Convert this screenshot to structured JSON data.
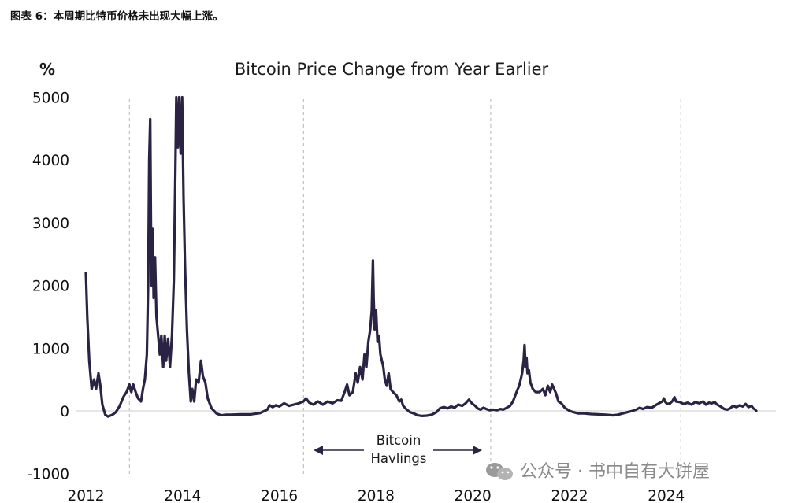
{
  "caption": "图表 6：本周期比特币价格未出现大幅上涨。",
  "watermark": {
    "text": "公众号 · 书中自有大饼屋",
    "icon": "wechat-icon"
  },
  "colors": {
    "line": "#2b2343",
    "zero_line": "#d8d8d8",
    "halving_line": "#b5b5b5",
    "text": "#1a1a1a",
    "watermark": "#8a8a8a"
  },
  "chart_data": {
    "type": "line",
    "title": "Bitcoin Price Change from Year Earlier",
    "ylabel": "%",
    "xlabel": "",
    "xlim": [
      2012,
      2025.9
    ],
    "ylim": [
      -1000,
      5000
    ],
    "x_ticks": [
      "2012",
      "2014",
      "2016",
      "2018",
      "2020",
      "2022",
      "2024"
    ],
    "y_ticks": [
      "5000",
      "4000",
      "3000",
      "2000",
      "1000",
      "0",
      "-1000"
    ],
    "grid": false,
    "legend": "none",
    "halvings": [
      2012.9,
      2016.5,
      2020.37,
      2024.3
    ],
    "annotation": {
      "line1": "Bitcoin",
      "line2": "Havlings"
    },
    "series": [
      {
        "points": [
          [
            2012.0,
            2200
          ],
          [
            2012.03,
            1500
          ],
          [
            2012.07,
            800
          ],
          [
            2012.12,
            350
          ],
          [
            2012.17,
            500
          ],
          [
            2012.21,
            350
          ],
          [
            2012.26,
            600
          ],
          [
            2012.3,
            400
          ],
          [
            2012.34,
            100
          ],
          [
            2012.4,
            -60
          ],
          [
            2012.46,
            -90
          ],
          [
            2012.55,
            -60
          ],
          [
            2012.62,
            -20
          ],
          [
            2012.7,
            80
          ],
          [
            2012.78,
            230
          ],
          [
            2012.84,
            300
          ],
          [
            2012.9,
            420
          ],
          [
            2012.94,
            300
          ],
          [
            2012.98,
            420
          ],
          [
            2013.03,
            300
          ],
          [
            2013.08,
            200
          ],
          [
            2013.14,
            150
          ],
          [
            2013.18,
            350
          ],
          [
            2013.22,
            500
          ],
          [
            2013.26,
            900
          ],
          [
            2013.29,
            2100
          ],
          [
            2013.31,
            4000
          ],
          [
            2013.33,
            4650
          ],
          [
            2013.345,
            3000
          ],
          [
            2013.36,
            2000
          ],
          [
            2013.38,
            2900
          ],
          [
            2013.4,
            1800
          ],
          [
            2013.43,
            2450
          ],
          [
            2013.46,
            1500
          ],
          [
            2013.5,
            1150
          ],
          [
            2013.53,
            900
          ],
          [
            2013.56,
            1200
          ],
          [
            2013.6,
            700
          ],
          [
            2013.63,
            1200
          ],
          [
            2013.66,
            800
          ],
          [
            2013.7,
            1150
          ],
          [
            2013.74,
            700
          ],
          [
            2013.78,
            1200
          ],
          [
            2013.82,
            2100
          ],
          [
            2013.85,
            3800
          ],
          [
            2013.87,
            5000
          ],
          [
            2013.9,
            4200
          ],
          [
            2013.93,
            5000
          ],
          [
            2013.96,
            4100
          ],
          [
            2013.99,
            5000
          ],
          [
            2014.02,
            3400
          ],
          [
            2014.05,
            2300
          ],
          [
            2014.09,
            1300
          ],
          [
            2014.13,
            600
          ],
          [
            2014.17,
            150
          ],
          [
            2014.2,
            350
          ],
          [
            2014.24,
            150
          ],
          [
            2014.28,
            500
          ],
          [
            2014.33,
            450
          ],
          [
            2014.38,
            800
          ],
          [
            2014.42,
            550
          ],
          [
            2014.47,
            450
          ],
          [
            2014.52,
            200
          ],
          [
            2014.6,
            40
          ],
          [
            2014.7,
            -40
          ],
          [
            2014.8,
            -70
          ],
          [
            2014.9,
            -60
          ],
          [
            2015.0,
            -60
          ],
          [
            2015.2,
            -55
          ],
          [
            2015.4,
            -55
          ],
          [
            2015.6,
            -35
          ],
          [
            2015.75,
            20
          ],
          [
            2015.8,
            90
          ],
          [
            2015.86,
            60
          ],
          [
            2015.93,
            90
          ],
          [
            2016.0,
            70
          ],
          [
            2016.1,
            120
          ],
          [
            2016.2,
            80
          ],
          [
            2016.3,
            100
          ],
          [
            2016.4,
            120
          ],
          [
            2016.5,
            150
          ],
          [
            2016.55,
            200
          ],
          [
            2016.62,
            130
          ],
          [
            2016.7,
            100
          ],
          [
            2016.8,
            150
          ],
          [
            2016.9,
            100
          ],
          [
            2017.0,
            150
          ],
          [
            2017.1,
            120
          ],
          [
            2017.2,
            170
          ],
          [
            2017.28,
            160
          ],
          [
            2017.35,
            300
          ],
          [
            2017.4,
            420
          ],
          [
            2017.45,
            250
          ],
          [
            2017.52,
            300
          ],
          [
            2017.58,
            600
          ],
          [
            2017.62,
            450
          ],
          [
            2017.67,
            700
          ],
          [
            2017.72,
            500
          ],
          [
            2017.76,
            900
          ],
          [
            2017.8,
            700
          ],
          [
            2017.84,
            1100
          ],
          [
            2017.88,
            1300
          ],
          [
            2017.91,
            1600
          ],
          [
            2017.935,
            2400
          ],
          [
            2017.95,
            1800
          ],
          [
            2017.97,
            1300
          ],
          [
            2018.0,
            1600
          ],
          [
            2018.03,
            1100
          ],
          [
            2018.06,
            1200
          ],
          [
            2018.09,
            900
          ],
          [
            2018.12,
            800
          ],
          [
            2018.15,
            700
          ],
          [
            2018.18,
            500
          ],
          [
            2018.22,
            400
          ],
          [
            2018.26,
            600
          ],
          [
            2018.3,
            350
          ],
          [
            2018.35,
            300
          ],
          [
            2018.42,
            250
          ],
          [
            2018.48,
            150
          ],
          [
            2018.52,
            180
          ],
          [
            2018.56,
            80
          ],
          [
            2018.62,
            30
          ],
          [
            2018.7,
            -20
          ],
          [
            2018.78,
            -40
          ],
          [
            2018.86,
            -70
          ],
          [
            2018.95,
            -80
          ],
          [
            2019.05,
            -75
          ],
          [
            2019.15,
            -60
          ],
          [
            2019.25,
            -20
          ],
          [
            2019.32,
            40
          ],
          [
            2019.4,
            60
          ],
          [
            2019.48,
            40
          ],
          [
            2019.55,
            70
          ],
          [
            2019.62,
            50
          ],
          [
            2019.7,
            100
          ],
          [
            2019.78,
            80
          ],
          [
            2019.85,
            120
          ],
          [
            2019.92,
            180
          ],
          [
            2019.98,
            120
          ],
          [
            2020.05,
            80
          ],
          [
            2020.1,
            40
          ],
          [
            2020.16,
            20
          ],
          [
            2020.22,
            50
          ],
          [
            2020.28,
            30
          ],
          [
            2020.35,
            10
          ],
          [
            2020.42,
            20
          ],
          [
            2020.5,
            10
          ],
          [
            2020.57,
            30
          ],
          [
            2020.63,
            20
          ],
          [
            2020.7,
            50
          ],
          [
            2020.77,
            80
          ],
          [
            2020.83,
            150
          ],
          [
            2020.88,
            250
          ],
          [
            2020.93,
            350
          ],
          [
            2020.96,
            400
          ],
          [
            2020.99,
            500
          ],
          [
            2021.02,
            600
          ],
          [
            2021.05,
            800
          ],
          [
            2021.07,
            1050
          ],
          [
            2021.09,
            700
          ],
          [
            2021.11,
            850
          ],
          [
            2021.13,
            600
          ],
          [
            2021.16,
            650
          ],
          [
            2021.19,
            450
          ],
          [
            2021.24,
            350
          ],
          [
            2021.3,
            300
          ],
          [
            2021.38,
            300
          ],
          [
            2021.45,
            350
          ],
          [
            2021.5,
            250
          ],
          [
            2021.55,
            400
          ],
          [
            2021.6,
            300
          ],
          [
            2021.64,
            420
          ],
          [
            2021.68,
            350
          ],
          [
            2021.72,
            280
          ],
          [
            2021.77,
            150
          ],
          [
            2021.83,
            120
          ],
          [
            2021.9,
            50
          ],
          [
            2022.0,
            0
          ],
          [
            2022.08,
            -20
          ],
          [
            2022.18,
            -40
          ],
          [
            2022.3,
            -40
          ],
          [
            2022.45,
            -50
          ],
          [
            2022.6,
            -55
          ],
          [
            2022.75,
            -60
          ],
          [
            2022.9,
            -70
          ],
          [
            2023.0,
            -60
          ],
          [
            2023.1,
            -40
          ],
          [
            2023.2,
            -20
          ],
          [
            2023.3,
            0
          ],
          [
            2023.38,
            20
          ],
          [
            2023.45,
            50
          ],
          [
            2023.52,
            30
          ],
          [
            2023.6,
            60
          ],
          [
            2023.7,
            50
          ],
          [
            2023.8,
            100
          ],
          [
            2023.87,
            130
          ],
          [
            2023.92,
            150
          ],
          [
            2023.95,
            200
          ],
          [
            2023.98,
            140
          ],
          [
            2024.02,
            110
          ],
          [
            2024.08,
            120
          ],
          [
            2024.13,
            160
          ],
          [
            2024.17,
            220
          ],
          [
            2024.2,
            150
          ],
          [
            2024.28,
            140
          ],
          [
            2024.36,
            110
          ],
          [
            2024.44,
            130
          ],
          [
            2024.52,
            100
          ],
          [
            2024.6,
            140
          ],
          [
            2024.68,
            120
          ],
          [
            2024.76,
            150
          ],
          [
            2024.82,
            100
          ],
          [
            2024.88,
            130
          ],
          [
            2024.94,
            120
          ],
          [
            2025.0,
            140
          ],
          [
            2025.05,
            100
          ],
          [
            2025.12,
            70
          ],
          [
            2025.2,
            30
          ],
          [
            2025.26,
            20
          ],
          [
            2025.32,
            40
          ],
          [
            2025.38,
            80
          ],
          [
            2025.45,
            60
          ],
          [
            2025.52,
            90
          ],
          [
            2025.58,
            70
          ],
          [
            2025.64,
            110
          ],
          [
            2025.7,
            60
          ],
          [
            2025.76,
            80
          ],
          [
            2025.8,
            40
          ],
          [
            2025.84,
            20
          ],
          [
            2025.86,
            0
          ]
        ]
      }
    ]
  }
}
